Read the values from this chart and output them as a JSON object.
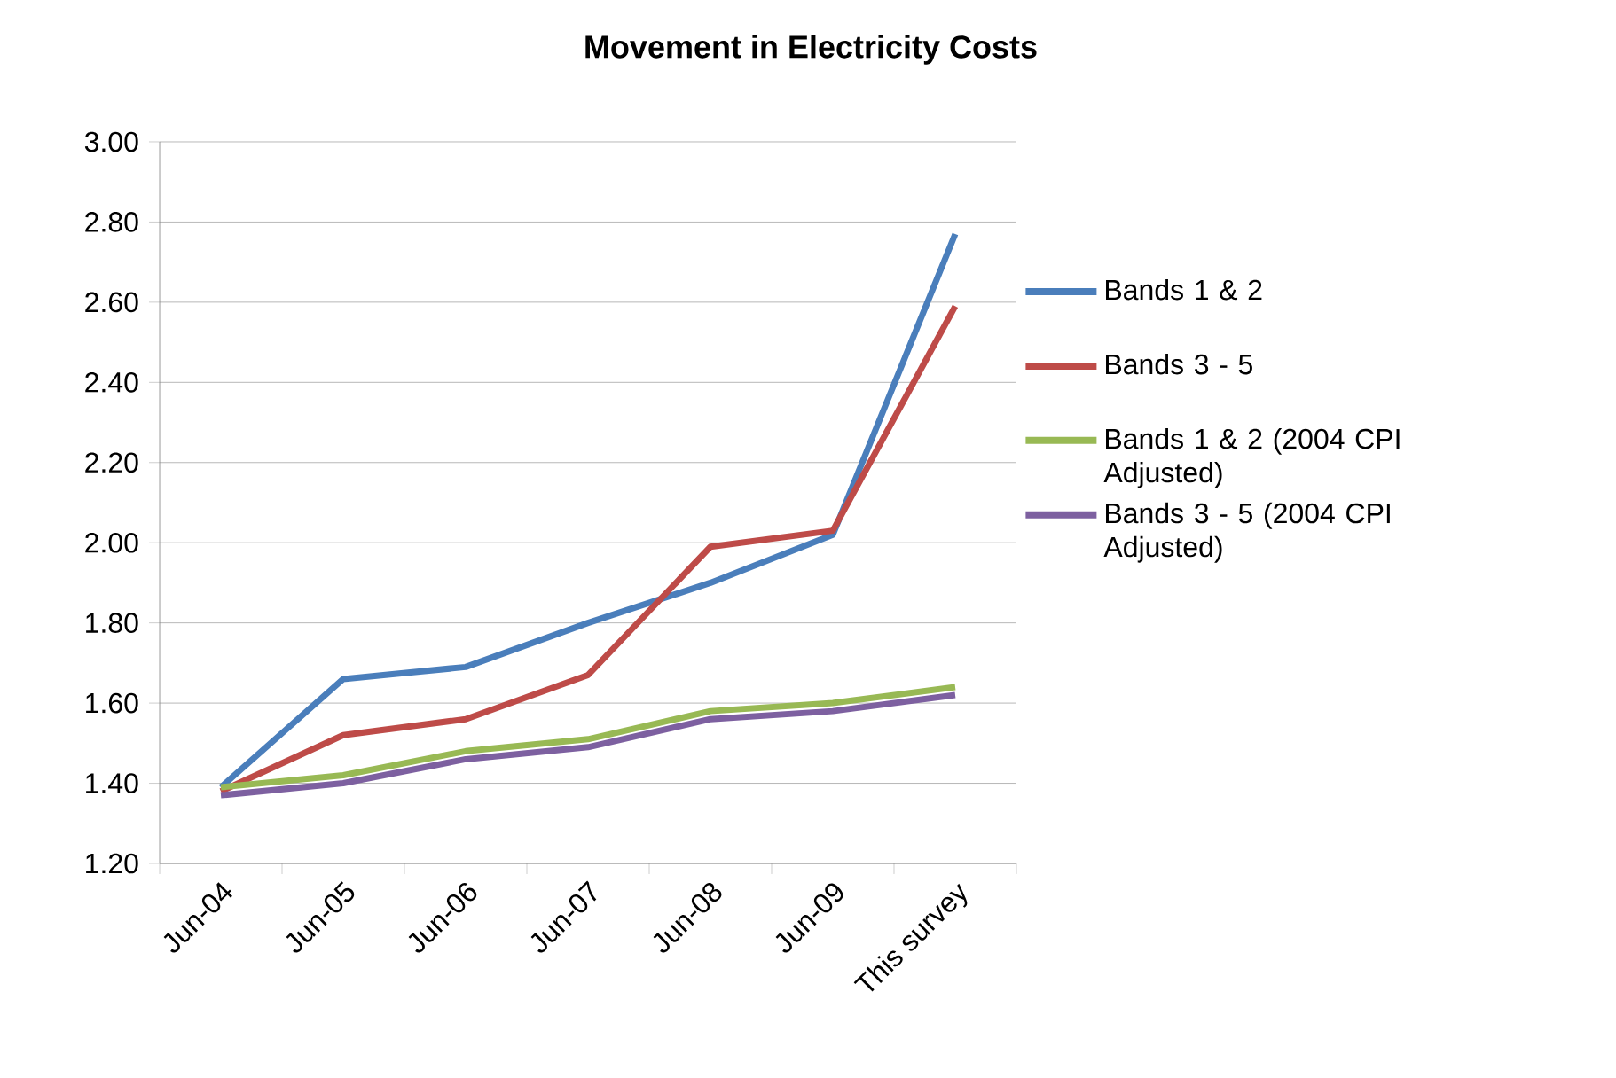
{
  "chart_data": {
    "type": "line",
    "title": "Movement in Electricity Costs",
    "categories": [
      "Jun-04",
      "Jun-05",
      "Jun-06",
      "Jun-07",
      "Jun-08",
      "Jun-09",
      "This survey"
    ],
    "series": [
      {
        "name": "Bands 1 & 2",
        "color": "#4a7ebb",
        "values": [
          1.39,
          1.66,
          1.69,
          1.8,
          1.9,
          2.02,
          2.77
        ]
      },
      {
        "name": "Bands 3 - 5",
        "color": "#be4b48",
        "values": [
          1.38,
          1.52,
          1.56,
          1.67,
          1.99,
          2.03,
          2.59
        ]
      },
      {
        "name": "Bands 1 & 2 (2004 CPI Adjusted)",
        "color": "#98b954",
        "values": [
          1.39,
          1.42,
          1.48,
          1.51,
          1.58,
          1.6,
          1.64
        ]
      },
      {
        "name": "Bands 3 - 5 (2004 CPI Adjusted)",
        "color": "#7d60a0",
        "values": [
          1.37,
          1.4,
          1.46,
          1.49,
          1.56,
          1.58,
          1.62
        ]
      }
    ],
    "ylim": [
      1.2,
      3.0
    ],
    "yticks": [
      {
        "value": 1.2,
        "label": "1.20"
      },
      {
        "value": 1.4,
        "label": "1.40"
      },
      {
        "value": 1.6,
        "label": "1.60"
      },
      {
        "value": 1.8,
        "label": "1.80"
      },
      {
        "value": 2.0,
        "label": "2.00"
      },
      {
        "value": 2.2,
        "label": "2.20"
      },
      {
        "value": 2.4,
        "label": "2.40"
      },
      {
        "value": 2.6,
        "label": "2.60"
      },
      {
        "value": 2.8,
        "label": "2.80"
      },
      {
        "value": 3.0,
        "label": "3.00"
      }
    ],
    "grid": "y",
    "legend": "right",
    "marker": "none",
    "line_style": "solid"
  }
}
